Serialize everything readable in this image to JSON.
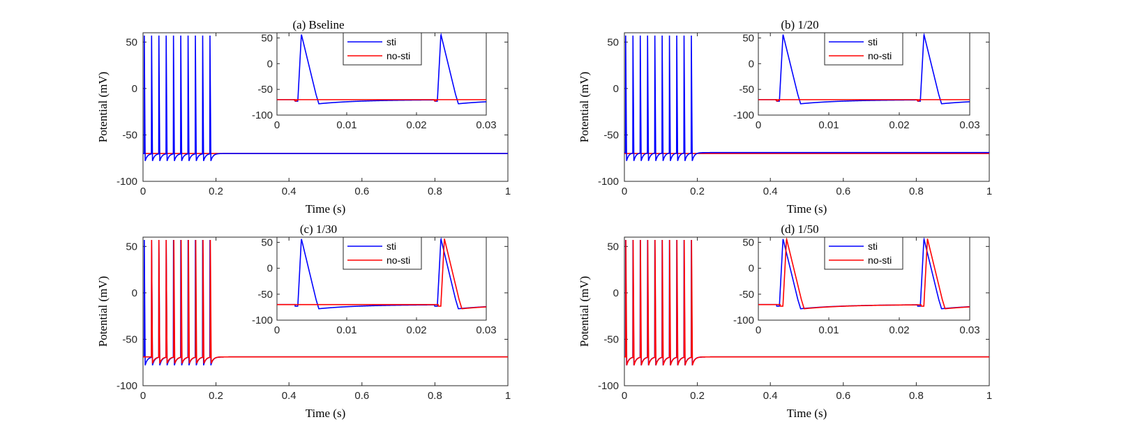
{
  "colors": {
    "sti": "#0000ff",
    "no_sti": "#ff0000",
    "axis": "#262626"
  },
  "chart_data": [
    {
      "type": "line",
      "title": "(a) Bseline",
      "xlabel": "Time (s)",
      "ylabel": "Potential (mV)",
      "xlim": [
        0,
        1
      ],
      "ylim": [
        -100,
        60
      ],
      "xticks": [
        "0",
        "0.2",
        "0.4",
        "0.6",
        "0.8",
        "1"
      ],
      "yticks": [
        "50",
        "0",
        "-50",
        "-100"
      ],
      "series": [
        {
          "name": "sti",
          "spike_times": [
            0.003,
            0.023,
            0.043,
            0.063,
            0.083,
            0.103,
            0.123,
            0.143,
            0.163,
            0.183
          ],
          "peak": 57,
          "trough": -78,
          "rest": -70
        },
        {
          "name": "no-sti",
          "spike_times": [],
          "rest": -70
        }
      ],
      "inset": {
        "xlim": [
          0,
          0.03
        ],
        "ylim": [
          -100,
          60
        ],
        "xticks": [
          "0",
          "0.01",
          "0.02",
          "0.03"
        ],
        "yticks": [
          "50",
          "0",
          "-50",
          "-100"
        ],
        "legend": [
          "sti",
          "no-sti"
        ],
        "sti_spikes": [
          0.003,
          0.023
        ],
        "nosti_spikes": []
      }
    },
    {
      "type": "line",
      "title": "(b) 1/20",
      "xlabel": "Time (s)",
      "ylabel": "Potential (mV)",
      "xlim": [
        0,
        1
      ],
      "ylim": [
        -100,
        60
      ],
      "xticks": [
        "0",
        "0.2",
        "0.4",
        "0.6",
        "0.8",
        "1"
      ],
      "yticks": [
        "50",
        "0",
        "-50",
        "-100"
      ],
      "series": [
        {
          "name": "sti",
          "spike_times": [
            0.003,
            0.023,
            0.043,
            0.063,
            0.083,
            0.103,
            0.123,
            0.143,
            0.163,
            0.183
          ],
          "peak": 57,
          "trough": -78,
          "rest": -69
        },
        {
          "name": "no-sti",
          "spike_times": [],
          "rest": -70
        }
      ],
      "inset": {
        "xlim": [
          0,
          0.03
        ],
        "ylim": [
          -100,
          60
        ],
        "xticks": [
          "0",
          "0.01",
          "0.02",
          "0.03"
        ],
        "yticks": [
          "50",
          "0",
          "-50",
          "-100"
        ],
        "legend": [
          "sti",
          "no-sti"
        ],
        "sti_spikes": [
          0.003,
          0.023
        ],
        "nosti_spikes": []
      }
    },
    {
      "type": "line",
      "title": "(c) 1/30",
      "xlabel": "Time (s)",
      "ylabel": "Potential (mV)",
      "xlim": [
        0,
        1
      ],
      "ylim": [
        -100,
        60
      ],
      "xticks": [
        "0",
        "0.2",
        "0.4",
        "0.6",
        "0.8",
        "1"
      ],
      "yticks": [
        "50",
        "0",
        "-50",
        "-100"
      ],
      "series": [
        {
          "name": "sti",
          "spike_times": [
            0.003,
            0.023,
            0.043,
            0.063,
            0.083,
            0.103,
            0.123,
            0.143,
            0.163,
            0.183
          ],
          "peak": 57,
          "trough": -78,
          "rest": -69
        },
        {
          "name": "no-sti",
          "spike_times": [
            0.023,
            0.043,
            0.063,
            0.084,
            0.104,
            0.124,
            0.144,
            0.164,
            0.184
          ],
          "peak": 57,
          "trough": -76,
          "rest": -69
        }
      ],
      "inset": {
        "xlim": [
          0,
          0.03
        ],
        "ylim": [
          -100,
          60
        ],
        "xticks": [
          "0",
          "0.01",
          "0.02",
          "0.03"
        ],
        "yticks": [
          "50",
          "0",
          "-50",
          "-100"
        ],
        "legend": [
          "sti",
          "no-sti"
        ],
        "sti_spikes": [
          0.003,
          0.023
        ],
        "nosti_spikes": [
          0.0235
        ]
      }
    },
    {
      "type": "line",
      "title": "(d) 1/50",
      "xlabel": "Time (s)",
      "ylabel": "Potential (mV)",
      "xlim": [
        0,
        1
      ],
      "ylim": [
        -100,
        60
      ],
      "xticks": [
        "0",
        "0.2",
        "0.4",
        "0.6",
        "0.8",
        "1"
      ],
      "yticks": [
        "50",
        "0",
        "-50",
        "-100"
      ],
      "series": [
        {
          "name": "sti",
          "spike_times": [
            0.003,
            0.023,
            0.043,
            0.063,
            0.083,
            0.103,
            0.123,
            0.143,
            0.163,
            0.183
          ],
          "peak": 57,
          "trough": -78,
          "rest": -69
        },
        {
          "name": "no-sti",
          "spike_times": [
            0.0035,
            0.0235,
            0.0435,
            0.0635,
            0.0835,
            0.1035,
            0.1235,
            0.1435,
            0.1635,
            0.1835
          ],
          "peak": 57,
          "trough": -78,
          "rest": -69
        }
      ],
      "inset": {
        "xlim": [
          0,
          0.03
        ],
        "ylim": [
          -100,
          60
        ],
        "xticks": [
          "0",
          "0.01",
          "0.02",
          "0.03"
        ],
        "yticks": [
          "50",
          "0",
          "-50",
          "-100"
        ],
        "legend": [
          "sti",
          "no-sti"
        ],
        "sti_spikes": [
          0.003,
          0.023
        ],
        "nosti_spikes": [
          0.0035,
          0.0235
        ]
      }
    }
  ]
}
